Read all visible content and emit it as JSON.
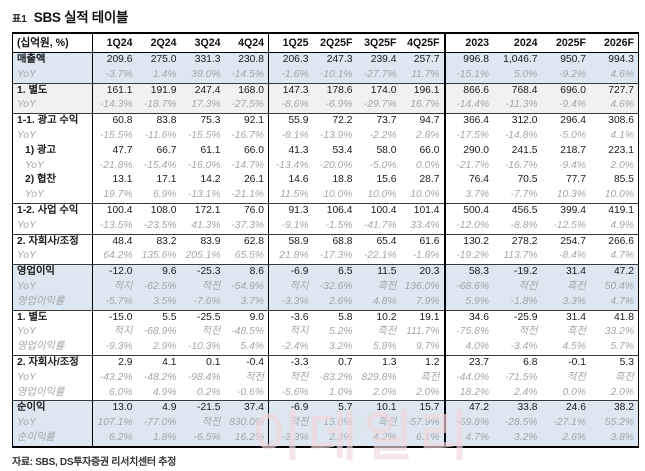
{
  "title": {
    "prefix": "표1",
    "text": "SBS 실적 테이블"
  },
  "footer": "자료: SBS, DS투자증권 리서치센터 추정",
  "watermark": "이데일리",
  "table": {
    "unit_header": "(십억원, %)",
    "columns": [
      "1Q24",
      "2Q24",
      "3Q24",
      "4Q24",
      "1Q25",
      "2Q25F",
      "3Q25F",
      "4Q25F",
      "2023",
      "2024",
      "2025F",
      "2026F"
    ],
    "rows": [
      {
        "label": "매출액",
        "band": "blue",
        "pct": false,
        "indent": 0,
        "sep": false,
        "values": [
          "209.6",
          "275.0",
          "331.3",
          "230.8",
          "206.3",
          "247.3",
          "239.4",
          "257.7",
          "996.8",
          "1,046.7",
          "950.7",
          "994.3"
        ]
      },
      {
        "label": "YoY",
        "band": "blue",
        "pct": true,
        "indent": 0,
        "sep": false,
        "values": [
          "-3.7%",
          "1.4%",
          "39.0%",
          "-14.5%",
          "-1.6%",
          "-10.1%",
          "-27.7%",
          "11.7%",
          "-15.1%",
          "5.0%",
          "-9.2%",
          "4.6%"
        ]
      },
      {
        "label": "1. 별도",
        "band": "gray",
        "pct": false,
        "indent": 0,
        "sep": true,
        "values": [
          "161.1",
          "191.9",
          "247.4",
          "168.0",
          "147.3",
          "178.6",
          "174.0",
          "196.1",
          "866.6",
          "768.4",
          "696.0",
          "727.7"
        ]
      },
      {
        "label": "YoY",
        "band": "gray",
        "pct": true,
        "indent": 0,
        "sep": false,
        "values": [
          "-14.3%",
          "-18.7%",
          "17.3%",
          "-27.5%",
          "-8.6%",
          "-6.9%",
          "-29.7%",
          "16.7%",
          "-14.4%",
          "-11.3%",
          "-9.4%",
          "4.6%"
        ]
      },
      {
        "label": "1-1. 광고 수익",
        "band": "",
        "pct": false,
        "indent": 0,
        "sep": true,
        "values": [
          "60.8",
          "83.8",
          "75.3",
          "92.1",
          "55.9",
          "72.2",
          "73.7",
          "94.7",
          "366.4",
          "312.0",
          "296.4",
          "308.6"
        ]
      },
      {
        "label": "YoY",
        "band": "",
        "pct": true,
        "indent": 0,
        "sep": false,
        "values": [
          "-15.5%",
          "-11.6%",
          "-15.5%",
          "-16.7%",
          "-8.1%",
          "-13.9%",
          "-2.2%",
          "2.8%",
          "-17.5%",
          "-14.8%",
          "-5.0%",
          "4.1%"
        ]
      },
      {
        "label": "1) 광고",
        "band": "",
        "pct": false,
        "indent": 1,
        "sep": false,
        "values": [
          "47.7",
          "66.7",
          "61.1",
          "66.0",
          "41.3",
          "53.4",
          "58.0",
          "66.0",
          "290.0",
          "241.5",
          "218.7",
          "223.1"
        ]
      },
      {
        "label": "YoY",
        "band": "",
        "pct": true,
        "indent": 1,
        "sep": false,
        "values": [
          "-21.8%",
          "-15.4%",
          "-16.0%",
          "-14.7%",
          "-13.4%",
          "-20.0%",
          "-5.0%",
          "0.0%",
          "-21.7%",
          "-16.7%",
          "-9.4%",
          "2.0%"
        ]
      },
      {
        "label": "2) 협찬",
        "band": "",
        "pct": false,
        "indent": 1,
        "sep": false,
        "values": [
          "13.1",
          "17.1",
          "14.2",
          "26.1",
          "14.6",
          "18.8",
          "15.6",
          "28.7",
          "76.4",
          "70.5",
          "77.7",
          "85.5"
        ]
      },
      {
        "label": "YoY",
        "band": "",
        "pct": true,
        "indent": 1,
        "sep": false,
        "values": [
          "19.7%",
          "6.9%",
          "-13.1%",
          "-21.1%",
          "11.5%",
          "10.0%",
          "10.0%",
          "10.0%",
          "3.7%",
          "-7.7%",
          "10.3%",
          "10.0%"
        ]
      },
      {
        "label": "1-2. 사업 수익",
        "band": "",
        "pct": false,
        "indent": 0,
        "sep": true,
        "values": [
          "100.4",
          "108.0",
          "172.1",
          "76.0",
          "91.3",
          "106.4",
          "100.4",
          "101.4",
          "500.4",
          "456.5",
          "399.4",
          "419.1"
        ]
      },
      {
        "label": "YoY",
        "band": "",
        "pct": true,
        "indent": 0,
        "sep": false,
        "values": [
          "-13.5%",
          "-23.5%",
          "41.3%",
          "-37.3%",
          "-9.1%",
          "-1.5%",
          "-41.7%",
          "33.4%",
          "-12.0%",
          "-8.8%",
          "-12.5%",
          "4.9%"
        ]
      },
      {
        "label": "2. 자회사/조정",
        "band": "",
        "pct": false,
        "indent": 0,
        "sep": true,
        "values": [
          "48.4",
          "83.2",
          "83.9",
          "62.8",
          "58.9",
          "68.8",
          "65.4",
          "61.6",
          "130.2",
          "278.2",
          "254.7",
          "266.6"
        ]
      },
      {
        "label": "YoY",
        "band": "",
        "pct": true,
        "indent": 0,
        "sep": false,
        "values": [
          "64.2%",
          "135.6%",
          "205.1%",
          "65.5%",
          "21.8%",
          "-17.3%",
          "-22.1%",
          "-1.8%",
          "-19.2%",
          "113.7%",
          "-8.4%",
          "4.7%"
        ]
      },
      {
        "label": "영업이익",
        "band": "blue",
        "pct": false,
        "indent": 0,
        "sep": true,
        "values": [
          "-12.0",
          "9.6",
          "-25.3",
          "8.6",
          "-6.9",
          "6.5",
          "11.5",
          "20.3",
          "58.3",
          "-19.2",
          "31.4",
          "47.2"
        ]
      },
      {
        "label": "YoY",
        "band": "blue",
        "pct": true,
        "indent": 0,
        "sep": false,
        "values": [
          "적지",
          "-62.5%",
          "적전",
          "-54.9%",
          "적지",
          "-32.6%",
          "흑전",
          "136.0%",
          "-68.6%",
          "적전",
          "흑전",
          "50.4%"
        ]
      },
      {
        "label": "영업이익률",
        "band": "blue",
        "pct": true,
        "indent": 0,
        "sep": false,
        "values": [
          "-5.7%",
          "3.5%",
          "-7.6%",
          "3.7%",
          "-3.3%",
          "2.6%",
          "4.8%",
          "7.9%",
          "5.9%",
          "-1.8%",
          "3.3%",
          "4.7%"
        ]
      },
      {
        "label": "1. 별도",
        "band": "",
        "pct": false,
        "indent": 0,
        "sep": true,
        "values": [
          "-15.0",
          "5.5",
          "-25.5",
          "9.0",
          "-3.6",
          "5.8",
          "10.2",
          "19.1",
          "34.6",
          "-25.9",
          "31.4",
          "41.8"
        ]
      },
      {
        "label": "YoY",
        "band": "",
        "pct": true,
        "indent": 0,
        "sep": false,
        "values": [
          "적지",
          "-68.9%",
          "적전",
          "-48.5%",
          "적지",
          "5.2%",
          "흑전",
          "111.7%",
          "-75.8%",
          "적전",
          "흑전",
          "33.2%"
        ]
      },
      {
        "label": "영업이익률",
        "band": "",
        "pct": true,
        "indent": 0,
        "sep": false,
        "values": [
          "-9.3%",
          "2.9%",
          "-10.3%",
          "5.4%",
          "-2.4%",
          "3.2%",
          "5.8%",
          "9.7%",
          "4.0%",
          "-3.4%",
          "4.5%",
          "5.7%"
        ]
      },
      {
        "label": "2. 자회사/조정",
        "band": "",
        "pct": false,
        "indent": 0,
        "sep": true,
        "values": [
          "2.9",
          "4.1",
          "0.1",
          "-0.4",
          "-3.3",
          "0.7",
          "1.3",
          "1.2",
          "23.7",
          "6.8",
          "-0.1",
          "5.3"
        ]
      },
      {
        "label": "YoY",
        "band": "",
        "pct": true,
        "indent": 0,
        "sep": false,
        "values": [
          "-43.2%",
          "-48.2%",
          "-98.4%",
          "적전",
          "적전",
          "-83.2%",
          "829.8%",
          "흑전",
          "-44.0%",
          "-71.5%",
          "적전",
          "흑전"
        ]
      },
      {
        "label": "영업이익률",
        "band": "",
        "pct": true,
        "indent": 0,
        "sep": false,
        "values": [
          "6.0%",
          "4.9%",
          "0.2%",
          "-0.6%",
          "-5.6%",
          "1.0%",
          "2.0%",
          "2.0%",
          "18.2%",
          "2.4%",
          "0.0%",
          "2.0%"
        ]
      },
      {
        "label": "순이익",
        "band": "blue",
        "pct": false,
        "indent": 0,
        "sep": true,
        "values": [
          "13.0",
          "4.9",
          "-21.5",
          "37.4",
          "-6.9",
          "5.7",
          "10.1",
          "15.7",
          "47.2",
          "33.8",
          "24.6",
          "38.2"
        ]
      },
      {
        "label": "YoY",
        "band": "blue",
        "pct": true,
        "indent": 0,
        "sep": false,
        "values": [
          "107.1%",
          "-77.0%",
          "적전",
          "830.0%",
          "적전",
          "15.0%",
          "흑전",
          "-57.9%",
          "-69.8%",
          "-28.5%",
          "-27.1%",
          "55.2%"
        ]
      },
      {
        "label": "순이익률",
        "band": "blue",
        "pct": true,
        "indent": 0,
        "sep": false,
        "values": [
          "6.2%",
          "1.8%",
          "-6.5%",
          "16.2%",
          "-3.3%",
          "2.3%",
          "4.2%",
          "6.1%",
          "4.7%",
          "3.2%",
          "2.6%",
          "3.8%"
        ]
      }
    ]
  }
}
